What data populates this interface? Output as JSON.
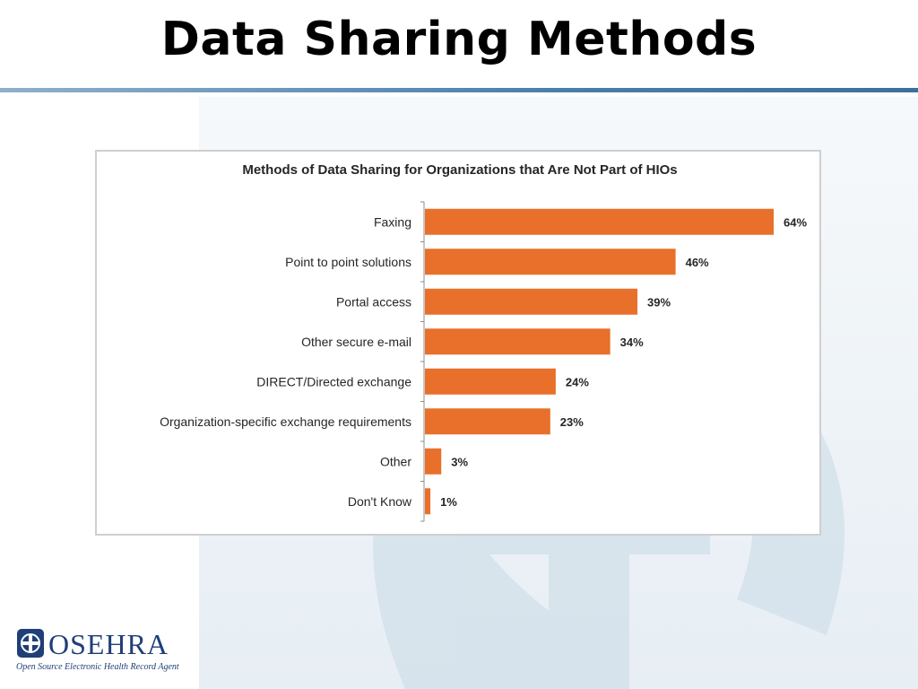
{
  "slide": {
    "title": "Data Sharing Methods"
  },
  "chart_data": {
    "type": "bar",
    "orientation": "horizontal",
    "title": "Methods of Data Sharing for Organizations that Are Not Part of HIOs",
    "categories": [
      "Faxing",
      "Point to point solutions",
      "Portal access",
      "Other secure e-mail",
      "DIRECT/Directed exchange",
      "Organization-specific exchange requirements",
      "Other",
      "Don't Know"
    ],
    "values": [
      64,
      46,
      39,
      34,
      24,
      23,
      3,
      1
    ],
    "value_labels": [
      "64%",
      "46%",
      "39%",
      "34%",
      "24%",
      "23%",
      "3%",
      "1%"
    ],
    "bar_color": "#e8702a",
    "xlim": [
      0,
      64
    ],
    "grid": false,
    "legend": "none"
  },
  "logo": {
    "name": "OSEHRA",
    "tagline": "Open Source Electronic Health Record Agent",
    "color": "#1f3f78"
  }
}
